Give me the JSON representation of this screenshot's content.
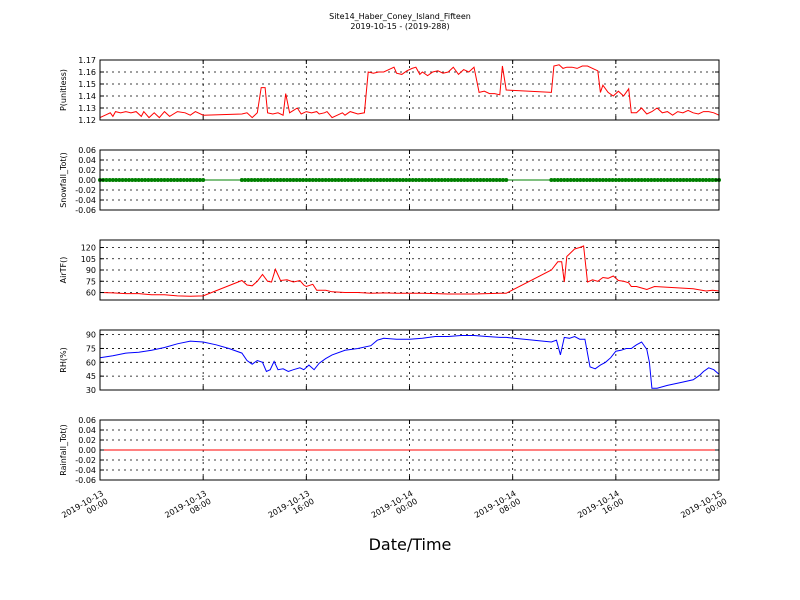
{
  "chart_data": {
    "title": "Site14_Haber_Coney_Island_Fifteen",
    "subtitle": "2019-10-15 - (2019-288)",
    "xlabel": "Date/Time",
    "type": "line",
    "x_range_hours": [
      0,
      48
    ],
    "x_ticks": [
      {
        "hour": 0,
        "line1": "2019-10-13",
        "line2": "00:00"
      },
      {
        "hour": 8,
        "line1": "2019-10-13",
        "line2": "08:00"
      },
      {
        "hour": 16,
        "line1": "2019-10-13",
        "line2": "16:00"
      },
      {
        "hour": 24,
        "line1": "2019-10-14",
        "line2": "00:00"
      },
      {
        "hour": 32,
        "line1": "2019-10-14",
        "line2": "08:00"
      },
      {
        "hour": 40,
        "line1": "2019-10-14",
        "line2": "16:00"
      },
      {
        "hour": 48,
        "line1": "2019-10-15",
        "line2": "00:00"
      }
    ],
    "panels": [
      {
        "ylabel": "P(unitless)",
        "color": "#ff0000",
        "ylim": [
          1.12,
          1.17
        ],
        "yticks": [
          "1.12",
          "1.13",
          "1.14",
          "1.15",
          "1.16",
          "1.17"
        ],
        "grid": true,
        "points": [
          [
            0,
            1.122
          ],
          [
            0.4,
            1.124
          ],
          [
            0.8,
            1.126
          ],
          [
            1.0,
            1.123
          ],
          [
            1.2,
            1.127
          ],
          [
            1.6,
            1.126
          ],
          [
            2.0,
            1.127
          ],
          [
            2.4,
            1.126
          ],
          [
            2.8,
            1.127
          ],
          [
            3.2,
            1.123
          ],
          [
            3.4,
            1.127
          ],
          [
            3.8,
            1.122
          ],
          [
            4.2,
            1.126
          ],
          [
            4.6,
            1.122
          ],
          [
            5.0,
            1.127
          ],
          [
            5.4,
            1.123
          ],
          [
            6.0,
            1.127
          ],
          [
            6.6,
            1.126
          ],
          [
            7.0,
            1.124
          ],
          [
            7.4,
            1.127
          ],
          [
            8.0,
            1.124
          ],
          [
            11.0,
            1.125
          ],
          [
            11.4,
            1.126
          ],
          [
            11.8,
            1.122
          ],
          [
            12.2,
            1.126
          ],
          [
            12.5,
            1.147
          ],
          [
            12.8,
            1.147
          ],
          [
            13.0,
            1.126
          ],
          [
            13.4,
            1.125
          ],
          [
            13.8,
            1.126
          ],
          [
            14.2,
            1.124
          ],
          [
            14.4,
            1.142
          ],
          [
            14.7,
            1.126
          ],
          [
            15.0,
            1.128
          ],
          [
            15.3,
            1.13
          ],
          [
            15.6,
            1.125
          ],
          [
            16.0,
            1.127
          ],
          [
            16.4,
            1.126
          ],
          [
            16.8,
            1.127
          ],
          [
            17.0,
            1.125
          ],
          [
            17.4,
            1.126
          ],
          [
            17.6,
            1.127
          ],
          [
            18.0,
            1.122
          ],
          [
            18.4,
            1.124
          ],
          [
            18.8,
            1.126
          ],
          [
            19.0,
            1.124
          ],
          [
            19.4,
            1.127
          ],
          [
            20.0,
            1.125
          ],
          [
            20.5,
            1.126
          ],
          [
            20.8,
            1.16
          ],
          [
            21.2,
            1.159
          ],
          [
            21.6,
            1.16
          ],
          [
            22.0,
            1.16
          ],
          [
            22.4,
            1.162
          ],
          [
            22.8,
            1.164
          ],
          [
            23.0,
            1.159
          ],
          [
            23.4,
            1.158
          ],
          [
            23.8,
            1.161
          ],
          [
            24.2,
            1.163
          ],
          [
            24.5,
            1.164
          ],
          [
            24.8,
            1.158
          ],
          [
            25.0,
            1.16
          ],
          [
            25.4,
            1.157
          ],
          [
            25.8,
            1.16
          ],
          [
            26.2,
            1.161
          ],
          [
            26.6,
            1.159
          ],
          [
            27.0,
            1.16
          ],
          [
            27.4,
            1.164
          ],
          [
            27.8,
            1.158
          ],
          [
            28.2,
            1.162
          ],
          [
            28.6,
            1.16
          ],
          [
            29.0,
            1.164
          ],
          [
            29.4,
            1.143
          ],
          [
            29.8,
            1.144
          ],
          [
            30.2,
            1.142
          ],
          [
            30.6,
            1.142
          ],
          [
            31.0,
            1.141
          ],
          [
            31.2,
            1.165
          ],
          [
            31.5,
            1.145
          ],
          [
            35.0,
            1.143
          ],
          [
            35.2,
            1.165
          ],
          [
            35.6,
            1.166
          ],
          [
            35.9,
            1.163
          ],
          [
            36.2,
            1.164
          ],
          [
            36.6,
            1.164
          ],
          [
            37.0,
            1.163
          ],
          [
            37.4,
            1.165
          ],
          [
            37.8,
            1.165
          ],
          [
            38.2,
            1.163
          ],
          [
            38.6,
            1.161
          ],
          [
            38.8,
            1.143
          ],
          [
            39.0,
            1.149
          ],
          [
            39.4,
            1.143
          ],
          [
            39.8,
            1.14
          ],
          [
            40.2,
            1.144
          ],
          [
            40.6,
            1.14
          ],
          [
            41.0,
            1.146
          ],
          [
            41.2,
            1.126
          ],
          [
            41.6,
            1.126
          ],
          [
            42.0,
            1.13
          ],
          [
            42.4,
            1.125
          ],
          [
            42.8,
            1.127
          ],
          [
            43.2,
            1.13
          ],
          [
            43.6,
            1.126
          ],
          [
            44.0,
            1.127
          ],
          [
            44.4,
            1.124
          ],
          [
            44.8,
            1.127
          ],
          [
            45.2,
            1.126
          ],
          [
            45.6,
            1.128
          ],
          [
            46.0,
            1.126
          ],
          [
            46.4,
            1.125
          ],
          [
            46.8,
            1.127
          ],
          [
            47.2,
            1.127
          ],
          [
            47.6,
            1.126
          ],
          [
            48.0,
            1.124
          ]
        ]
      },
      {
        "ylabel": "Snowfall_Tot()",
        "color": "#008000",
        "ylim": [
          -0.06,
          0.06
        ],
        "yticks": [
          "-0.06",
          "-0.04",
          "-0.02",
          "0.00",
          "0.02",
          "0.04",
          "0.06"
        ],
        "grid": true,
        "markers": true,
        "marker_ranges": [
          [
            0,
            8
          ],
          [
            11,
            31.5
          ],
          [
            35,
            48
          ]
        ],
        "points": [
          [
            0,
            0
          ],
          [
            48,
            0
          ]
        ]
      },
      {
        "ylabel": "AirTF()",
        "color": "#ff0000",
        "ylim": [
          50,
          130
        ],
        "yticks": [
          "60",
          "75",
          "90",
          "105",
          "120"
        ],
        "ytick_values": [
          60,
          75,
          90,
          105,
          120
        ],
        "grid": true,
        "points": [
          [
            0,
            60
          ],
          [
            1,
            59.5
          ],
          [
            2,
            58.5
          ],
          [
            3,
            58.5
          ],
          [
            4,
            57
          ],
          [
            5,
            57
          ],
          [
            6,
            55.5
          ],
          [
            7,
            55
          ],
          [
            8,
            55.5
          ],
          [
            11,
            76
          ],
          [
            11.4,
            70
          ],
          [
            11.8,
            69
          ],
          [
            12.2,
            75
          ],
          [
            12.6,
            84
          ],
          [
            13.0,
            75
          ],
          [
            13.3,
            74
          ],
          [
            13.6,
            91
          ],
          [
            14.0,
            76
          ],
          [
            14.5,
            77
          ],
          [
            15.0,
            74
          ],
          [
            15.5,
            76
          ],
          [
            15.8,
            70
          ],
          [
            16.0,
            68
          ],
          [
            16.5,
            71
          ],
          [
            16.8,
            63
          ],
          [
            17.5,
            63
          ],
          [
            18.0,
            61
          ],
          [
            19,
            60
          ],
          [
            20,
            60
          ],
          [
            21,
            59
          ],
          [
            22,
            59.5
          ],
          [
            23,
            59
          ],
          [
            24,
            59
          ],
          [
            25,
            59
          ],
          [
            26,
            58.5
          ],
          [
            27,
            58
          ],
          [
            28,
            58
          ],
          [
            29,
            58
          ],
          [
            30,
            58.5
          ],
          [
            31,
            59
          ],
          [
            31.5,
            59
          ],
          [
            35,
            90
          ],
          [
            35.5,
            101
          ],
          [
            35.8,
            101
          ],
          [
            36.0,
            74
          ],
          [
            36.2,
            108
          ],
          [
            36.5,
            113
          ],
          [
            36.8,
            118
          ],
          [
            37.2,
            120
          ],
          [
            37.5,
            122
          ],
          [
            37.8,
            74
          ],
          [
            38.2,
            77
          ],
          [
            38.6,
            75
          ],
          [
            39.0,
            80
          ],
          [
            39.4,
            79
          ],
          [
            39.8,
            82
          ],
          [
            40.2,
            76
          ],
          [
            40.6,
            75
          ],
          [
            41.0,
            73
          ],
          [
            41.2,
            68
          ],
          [
            41.6,
            68
          ],
          [
            42.0,
            66
          ],
          [
            42.4,
            64
          ],
          [
            43.0,
            68
          ],
          [
            44,
            67
          ],
          [
            45,
            66
          ],
          [
            46,
            65
          ],
          [
            47,
            62
          ],
          [
            47.5,
            63
          ],
          [
            48,
            62
          ]
        ]
      },
      {
        "ylabel": "RH(%)",
        "color": "#0000ff",
        "ylim": [
          30,
          95
        ],
        "yticks": [
          "30",
          "45",
          "60",
          "75",
          "90"
        ],
        "ytick_values": [
          30,
          45,
          60,
          75,
          90
        ],
        "grid": true,
        "points": [
          [
            0,
            65
          ],
          [
            1,
            67
          ],
          [
            2,
            70
          ],
          [
            3,
            71
          ],
          [
            4,
            73
          ],
          [
            5,
            76
          ],
          [
            6,
            80
          ],
          [
            7,
            83
          ],
          [
            8,
            82
          ],
          [
            9,
            79
          ],
          [
            10,
            75
          ],
          [
            11,
            70
          ],
          [
            11.4,
            62
          ],
          [
            11.8,
            58
          ],
          [
            12.2,
            62
          ],
          [
            12.6,
            60
          ],
          [
            12.9,
            50
          ],
          [
            13.2,
            52
          ],
          [
            13.5,
            61
          ],
          [
            13.8,
            52
          ],
          [
            14.2,
            53
          ],
          [
            14.6,
            50
          ],
          [
            15.0,
            52
          ],
          [
            15.5,
            54
          ],
          [
            15.8,
            52
          ],
          [
            16.2,
            57
          ],
          [
            16.6,
            52
          ],
          [
            17.0,
            59
          ],
          [
            17.5,
            64
          ],
          [
            18.0,
            68
          ],
          [
            19,
            73
          ],
          [
            20,
            75
          ],
          [
            21,
            78
          ],
          [
            21.5,
            84
          ],
          [
            22,
            86
          ],
          [
            23,
            85
          ],
          [
            24,
            85
          ],
          [
            25,
            86
          ],
          [
            26,
            88
          ],
          [
            27,
            88
          ],
          [
            28,
            89
          ],
          [
            29,
            89
          ],
          [
            30,
            88
          ],
          [
            31,
            87
          ],
          [
            31.5,
            87
          ],
          [
            35,
            82
          ],
          [
            35.4,
            84
          ],
          [
            35.7,
            68
          ],
          [
            36.0,
            87
          ],
          [
            36.4,
            86
          ],
          [
            36.8,
            88
          ],
          [
            37.2,
            85
          ],
          [
            37.6,
            85
          ],
          [
            38.0,
            55
          ],
          [
            38.4,
            53
          ],
          [
            38.8,
            57
          ],
          [
            39.2,
            60
          ],
          [
            39.6,
            65
          ],
          [
            40.0,
            72
          ],
          [
            40.4,
            73
          ],
          [
            40.8,
            75
          ],
          [
            41.2,
            75
          ],
          [
            41.6,
            79
          ],
          [
            42.0,
            82
          ],
          [
            42.4,
            74
          ],
          [
            42.6,
            60
          ],
          [
            42.8,
            32
          ],
          [
            43.2,
            32
          ],
          [
            44,
            35
          ],
          [
            45,
            38
          ],
          [
            46,
            41
          ],
          [
            46.5,
            46
          ],
          [
            46.8,
            50
          ],
          [
            47.2,
            54
          ],
          [
            47.6,
            52
          ],
          [
            48,
            47
          ]
        ]
      },
      {
        "ylabel": "Rainfall_Tot()",
        "color": "#ff0000",
        "ylim": [
          -0.06,
          0.06
        ],
        "yticks": [
          "-0.06",
          "-0.04",
          "-0.02",
          "0.00",
          "0.02",
          "0.04",
          "0.06"
        ],
        "grid": true,
        "points": [
          [
            0,
            0
          ],
          [
            48,
            0
          ]
        ]
      }
    ]
  }
}
